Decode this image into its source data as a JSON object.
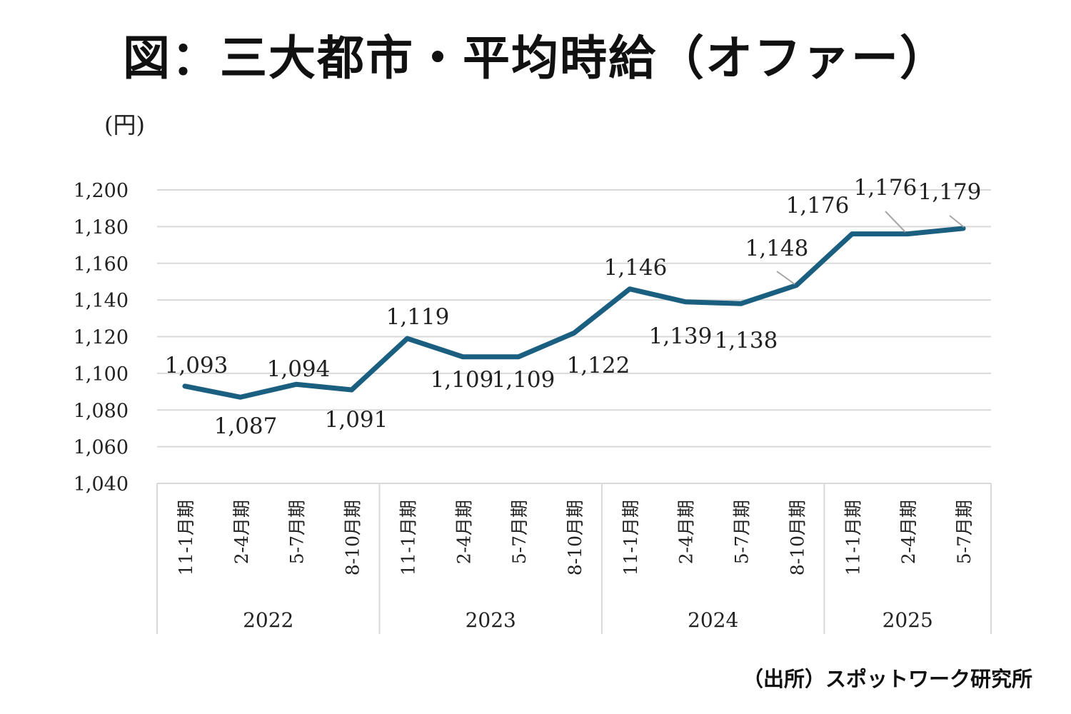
{
  "title": "図：三大都市・平均時給（オファー）",
  "source": "（出所）スポットワーク研究所",
  "chart_data": {
    "type": "line",
    "title": "図：三大都市・平均時給（オファー）",
    "ylabel": "(円)",
    "xlabel": "",
    "ylim": [
      1040,
      1200
    ],
    "yticks": [
      "1,040",
      "1,060",
      "1,080",
      "1,100",
      "1,120",
      "1,140",
      "1,160",
      "1,180",
      "1,200"
    ],
    "ytick_values": [
      1040,
      1060,
      1080,
      1100,
      1120,
      1140,
      1160,
      1180,
      1200
    ],
    "grid": true,
    "categories": [
      "11-1月期",
      "2-4月期",
      "5-7月期",
      "8-10月期",
      "11-1月期",
      "2-4月期",
      "5-7月期",
      "8-10月期",
      "11-1月期",
      "2-4月期",
      "5-7月期",
      "8-10月期",
      "11-1月期",
      "2-4月期",
      "5-7月期"
    ],
    "groups": [
      {
        "label": "2022",
        "count": 4
      },
      {
        "label": "2023",
        "count": 4
      },
      {
        "label": "2024",
        "count": 4
      },
      {
        "label": "2025",
        "count": 3
      }
    ],
    "series": [
      {
        "name": "平均時給",
        "color": "#1b5f80",
        "values": [
          1093,
          1087,
          1094,
          1091,
          1119,
          1109,
          1109,
          1122,
          1146,
          1139,
          1138,
          1148,
          1176,
          1176,
          1179
        ],
        "labels": [
          "1,093",
          "1,087",
          "1,094",
          "1,091",
          "1,119",
          "1,109",
          "1,109",
          "1,122",
          "1,146",
          "1,139",
          "1,138",
          "1,148",
          "1,176",
          "1,176",
          "1,179"
        ]
      }
    ]
  }
}
